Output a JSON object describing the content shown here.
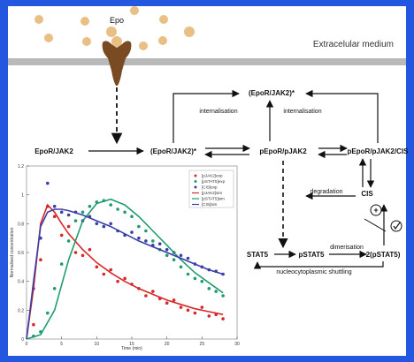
{
  "colors": {
    "frame": "#2457e0",
    "membrane": "#b9b9b9",
    "epo": "#e8bf84",
    "receptor": "#7a4a22",
    "line_red": "#d62828",
    "line_green": "#1f9c6d",
    "line_blue": "#3a3fa8"
  },
  "labels": {
    "epo": "Epo",
    "medium": "Extracelular medium",
    "complex_int": "(EpoR/JAK2)*",
    "int1": "internalisation",
    "int2": "internalisation",
    "eporjak2": "EpoR/JAK2",
    "complex_act": "(EpoR/JAK2)*",
    "pepor": "pEpoR/pJAK2",
    "pepor_cis": "pEpoR/pJAK2/CIS",
    "degradation": "degradation",
    "cis": "CIS",
    "stat5": "STAT5",
    "pstat5": "pSTAT5",
    "dimerisation": "dimerisation",
    "dimer": "2(pSTAT5)",
    "shuttling": "nucleocytoplasmic shuttling"
  },
  "chart_data": {
    "type": "scatter",
    "xlabel": "Time (min)",
    "ylabel": "Normalised concentration",
    "xlim": [
      0,
      30
    ],
    "ylim": [
      0,
      1.2
    ],
    "xticks": [
      "0",
      "5",
      "10",
      "15",
      "20",
      "25",
      "30"
    ],
    "yticks": [
      "0",
      "0.2",
      "0.4",
      "0.6",
      "0.8",
      "1",
      "1.2"
    ],
    "legend": {
      "placement": "top-right",
      "entries": [
        "[pJAK2]exp",
        "[pSTAT5]exp",
        "[CIS]exp",
        "[pJAK2]sim",
        "[pSTAT5]sim",
        "[CIS]sim"
      ]
    },
    "series": [
      {
        "name": "[pJAK2]exp",
        "kind": "points",
        "color": "#d62828",
        "x": [
          1,
          2,
          3,
          4,
          5,
          6,
          7,
          8,
          9,
          10,
          11,
          12,
          13,
          14,
          15,
          16,
          17,
          18,
          19,
          20,
          21,
          22,
          23,
          24,
          25,
          26,
          27,
          28
        ],
        "y": [
          0.1,
          0.55,
          0.92,
          0.85,
          0.72,
          0.78,
          0.6,
          0.58,
          0.62,
          0.5,
          0.45,
          0.48,
          0.4,
          0.42,
          0.38,
          0.35,
          0.3,
          0.33,
          0.28,
          0.25,
          0.27,
          0.22,
          0.2,
          0.18,
          0.22,
          0.16,
          0.17,
          0.14
        ]
      },
      {
        "name": "[pSTAT5]exp",
        "kind": "points",
        "color": "#1f9c6d",
        "x": [
          1,
          2,
          3,
          4,
          5,
          6,
          7,
          8,
          9,
          10,
          11,
          12,
          13,
          14,
          15,
          16,
          17,
          18,
          19,
          20,
          21,
          22,
          23,
          24,
          25,
          26,
          27,
          28
        ],
        "y": [
          0.02,
          0.05,
          0.18,
          0.35,
          0.52,
          0.68,
          0.82,
          0.88,
          0.92,
          0.95,
          0.96,
          0.93,
          0.9,
          0.88,
          0.85,
          0.78,
          0.75,
          0.68,
          0.62,
          0.58,
          0.55,
          0.5,
          0.45,
          0.42,
          0.4,
          0.35,
          0.33,
          0.3
        ]
      },
      {
        "name": "[CIS]exp",
        "kind": "points",
        "color": "#3a3fa8",
        "x": [
          1,
          2,
          3,
          4,
          5,
          6,
          7,
          8,
          9,
          10,
          11,
          12,
          13,
          14,
          15,
          16,
          17,
          18,
          19,
          20,
          21,
          22,
          23,
          24,
          25,
          26,
          27,
          28
        ],
        "y": [
          0.35,
          0.7,
          1.08,
          0.92,
          0.88,
          0.86,
          0.88,
          0.82,
          0.85,
          0.8,
          0.78,
          0.8,
          0.75,
          0.72,
          0.74,
          0.7,
          0.68,
          0.65,
          0.66,
          0.62,
          0.6,
          0.58,
          0.56,
          0.52,
          0.5,
          0.48,
          0.47,
          0.45
        ]
      },
      {
        "name": "[pJAK2]sim",
        "kind": "line",
        "color": "#d62828",
        "x": [
          0,
          1,
          2,
          3,
          4,
          5,
          6,
          8,
          10,
          12,
          14,
          16,
          18,
          20,
          22,
          24,
          26,
          28
        ],
        "y": [
          0,
          0.35,
          0.8,
          0.93,
          0.88,
          0.8,
          0.73,
          0.62,
          0.53,
          0.46,
          0.4,
          0.35,
          0.31,
          0.27,
          0.24,
          0.21,
          0.19,
          0.17
        ]
      },
      {
        "name": "[pSTAT5]sim",
        "kind": "line",
        "color": "#1f9c6d",
        "x": [
          0,
          2,
          4,
          6,
          8,
          10,
          12,
          14,
          16,
          18,
          20,
          22,
          24,
          26,
          28
        ],
        "y": [
          0,
          0.03,
          0.2,
          0.55,
          0.82,
          0.94,
          0.97,
          0.93,
          0.85,
          0.75,
          0.65,
          0.55,
          0.46,
          0.39,
          0.32
        ]
      },
      {
        "name": "[CIS]sim",
        "kind": "line",
        "color": "#3a3fa8",
        "x": [
          0,
          1,
          2,
          3,
          4,
          5,
          6,
          8,
          10,
          12,
          14,
          16,
          18,
          20,
          22,
          24,
          26,
          28
        ],
        "y": [
          0,
          0.4,
          0.78,
          0.88,
          0.9,
          0.9,
          0.89,
          0.86,
          0.82,
          0.78,
          0.73,
          0.68,
          0.64,
          0.6,
          0.56,
          0.52,
          0.48,
          0.45
        ]
      }
    ]
  }
}
